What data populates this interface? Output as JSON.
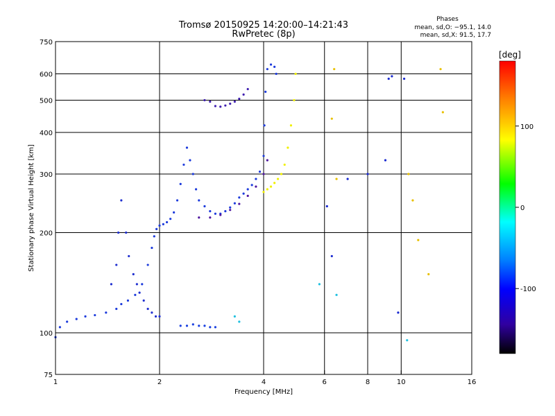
{
  "chart_data": {
    "type": "scatter",
    "title": "Tromsø 20150925 14:20:00–14:21:43",
    "subtitle": "RwPretec (8p)",
    "xlabel": "Frequency [MHz]",
    "ylabel": "Stationary phase Virtual Height [km]",
    "x_scale": "log",
    "y_scale": "log",
    "xlim": [
      1,
      16
    ],
    "ylim": [
      75,
      750
    ],
    "x_ticks": [
      1,
      2,
      4,
      6,
      8,
      10,
      16
    ],
    "y_ticks": [
      75,
      100,
      200,
      300,
      400,
      500,
      600,
      750
    ],
    "x_gridlines": [
      2,
      4,
      6,
      8,
      10
    ],
    "y_gridlines": [
      100,
      200,
      300,
      400,
      500,
      600
    ],
    "grid": true,
    "phase_stats": {
      "heading": "Phases",
      "line_o": "mean, sd,O: −95.1, 14.0",
      "line_x": "mean, sd,X:  91.5, 17.7"
    },
    "colorbar": {
      "label": "[deg]",
      "range": [
        -180,
        180
      ],
      "ticks": [
        100,
        0,
        -100
      ],
      "colors": [
        "#ff0000",
        "#ff8000",
        "#ffff00",
        "#00ff00",
        "#00ffff",
        "#0080ff",
        "#0000ff",
        "#3000a0",
        "#000000"
      ]
    },
    "series": [
      {
        "color": "#1e3cdc",
        "points": [
          [
            1.0,
            97
          ],
          [
            1.03,
            104
          ],
          [
            1.08,
            108
          ],
          [
            1.15,
            110
          ],
          [
            1.22,
            112
          ],
          [
            1.3,
            113
          ],
          [
            1.4,
            115
          ],
          [
            1.5,
            118
          ],
          [
            1.55,
            122
          ],
          [
            1.62,
            125
          ],
          [
            1.7,
            130
          ],
          [
            1.78,
            140
          ],
          [
            1.85,
            160
          ],
          [
            1.9,
            180
          ],
          [
            1.93,
            195
          ],
          [
            1.96,
            205
          ],
          [
            2.0,
            210
          ],
          [
            2.05,
            212
          ],
          [
            2.1,
            215
          ],
          [
            2.15,
            220
          ],
          [
            2.2,
            230
          ],
          [
            2.25,
            250
          ],
          [
            2.3,
            280
          ],
          [
            2.35,
            320
          ],
          [
            2.4,
            360
          ],
          [
            2.45,
            330
          ],
          [
            2.5,
            300
          ],
          [
            2.55,
            270
          ],
          [
            2.6,
            250
          ],
          [
            2.7,
            240
          ],
          [
            2.8,
            232
          ],
          [
            2.9,
            228
          ],
          [
            3.0,
            228
          ],
          [
            3.1,
            232
          ],
          [
            3.2,
            238
          ],
          [
            3.3,
            245
          ],
          [
            3.4,
            255
          ],
          [
            3.5,
            262
          ],
          [
            3.6,
            270
          ],
          [
            3.7,
            278
          ],
          [
            3.8,
            290
          ],
          [
            3.9,
            305
          ],
          [
            4.0,
            340
          ],
          [
            4.02,
            420
          ],
          [
            4.05,
            530
          ],
          [
            4.1,
            620
          ],
          [
            4.2,
            640
          ],
          [
            4.3,
            630
          ],
          [
            4.35,
            600
          ]
        ]
      },
      {
        "color": "#2030d0",
        "points": [
          [
            1.45,
            140
          ],
          [
            1.5,
            160
          ],
          [
            1.52,
            200
          ],
          [
            1.55,
            250
          ],
          [
            1.6,
            200
          ],
          [
            1.63,
            170
          ],
          [
            1.68,
            150
          ],
          [
            1.72,
            140
          ],
          [
            1.75,
            132
          ],
          [
            1.8,
            125
          ],
          [
            1.85,
            118
          ],
          [
            1.9,
            115
          ],
          [
            1.95,
            112
          ],
          [
            2.0,
            112
          ]
        ]
      },
      {
        "color": "#1a40e0",
        "points": [
          [
            2.3,
            105
          ],
          [
            2.4,
            105
          ],
          [
            2.5,
            106
          ],
          [
            2.6,
            105
          ],
          [
            2.7,
            105
          ],
          [
            2.8,
            104
          ],
          [
            2.9,
            104
          ]
        ]
      },
      {
        "color": "#5018a0",
        "points": [
          [
            2.6,
            222
          ],
          [
            2.8,
            222
          ],
          [
            3.0,
            226
          ],
          [
            3.2,
            234
          ],
          [
            3.4,
            244
          ],
          [
            3.6,
            258
          ],
          [
            3.8,
            275
          ],
          [
            4.0,
            300
          ],
          [
            4.1,
            330
          ]
        ]
      },
      {
        "color": "#4020b0",
        "points": [
          [
            2.7,
            500
          ],
          [
            2.8,
            495
          ],
          [
            2.9,
            480
          ],
          [
            3.0,
            478
          ],
          [
            3.1,
            482
          ],
          [
            3.2,
            488
          ],
          [
            3.3,
            495
          ],
          [
            3.4,
            505
          ],
          [
            3.5,
            520
          ],
          [
            3.6,
            540
          ]
        ]
      },
      {
        "color": "#f0f000",
        "points": [
          [
            4.0,
            265
          ],
          [
            4.1,
            270
          ],
          [
            4.2,
            275
          ],
          [
            4.3,
            282
          ],
          [
            4.4,
            290
          ],
          [
            4.5,
            300
          ],
          [
            4.6,
            320
          ],
          [
            4.7,
            360
          ],
          [
            4.8,
            420
          ],
          [
            4.9,
            500
          ],
          [
            4.95,
            600
          ]
        ]
      },
      {
        "color": "#e8c000",
        "points": [
          [
            6.3,
            440
          ],
          [
            6.4,
            620
          ],
          [
            6.5,
            290
          ],
          [
            10.5,
            300
          ],
          [
            10.8,
            250
          ],
          [
            11.2,
            190
          ],
          [
            12.0,
            150
          ],
          [
            13.0,
            620
          ],
          [
            13.2,
            460
          ]
        ]
      },
      {
        "color": "#20c0e0",
        "points": [
          [
            3.3,
            112
          ],
          [
            3.4,
            108
          ],
          [
            5.8,
            140
          ],
          [
            6.5,
            130
          ],
          [
            10.4,
            95
          ]
        ]
      },
      {
        "color": "#1828d0",
        "points": [
          [
            6.1,
            240
          ],
          [
            6.3,
            170
          ],
          [
            7.0,
            290
          ],
          [
            8.0,
            300
          ],
          [
            9.0,
            330
          ],
          [
            9.2,
            580
          ],
          [
            9.4,
            590
          ],
          [
            9.8,
            115
          ],
          [
            10.2,
            580
          ]
        ]
      }
    ]
  }
}
